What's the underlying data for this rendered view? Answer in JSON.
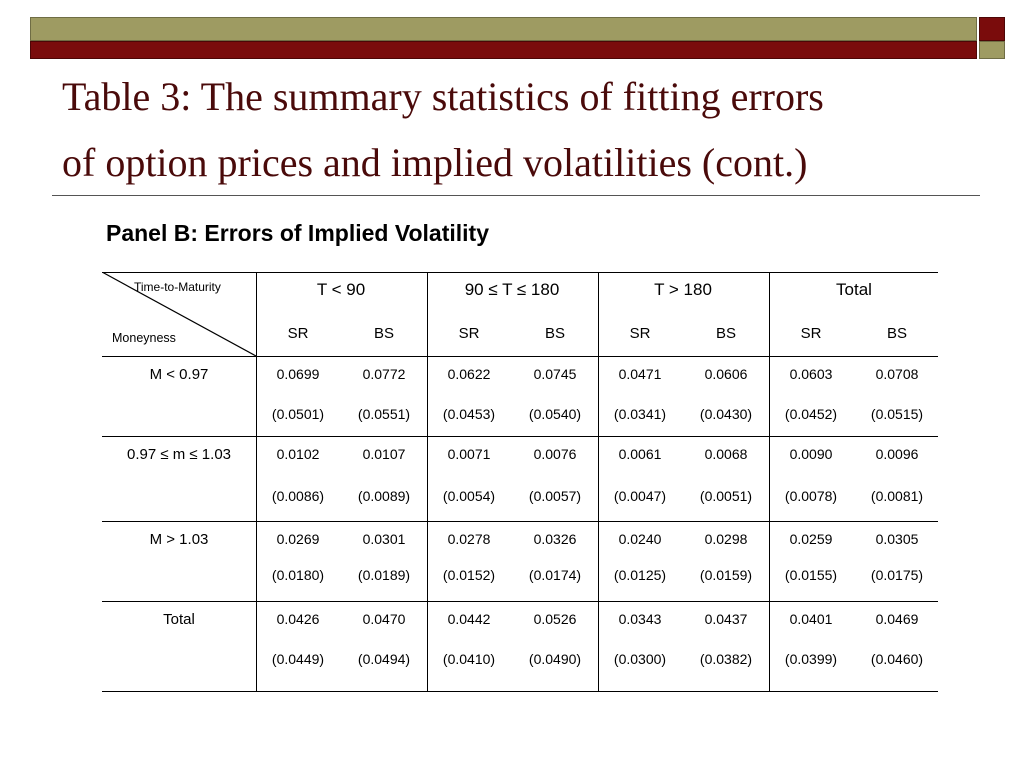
{
  "slide": {
    "title_line1": "Table 3: The summary statistics of fitting errors",
    "title_line2": "of option prices and implied volatilities (cont.)",
    "panel_title": "Panel B: Errors of Implied Volatility",
    "colors": {
      "title": "#4a0a0a",
      "maroon": "#7a0c0c",
      "olive": "#9e9b62"
    }
  },
  "table": {
    "corner_top": "Time-to-Maturity",
    "corner_bottom": "Moneyness",
    "groups": [
      "T < 90",
      "90 ≤ T ≤ 180",
      "T > 180",
      "Total"
    ],
    "subheaders": [
      "SR",
      "BS",
      "SR",
      "BS",
      "SR",
      "BS",
      "SR",
      "BS"
    ],
    "rows": [
      {
        "label": "M < 0.97",
        "values": [
          "0.0699",
          "0.0772",
          "0.0622",
          "0.0745",
          "0.0471",
          "0.0606",
          "0.0603",
          "0.0708"
        ],
        "sd": [
          "(0.0501)",
          "(0.0551)",
          "(0.0453)",
          "(0.0540)",
          "(0.0341)",
          "(0.0430)",
          "(0.0452)",
          "(0.0515)"
        ]
      },
      {
        "label": "0.97 ≤ m ≤ 1.03",
        "values": [
          "0.0102",
          "0.0107",
          "0.0071",
          "0.0076",
          "0.0061",
          "0.0068",
          "0.0090",
          "0.0096"
        ],
        "sd": [
          "(0.0086)",
          "(0.0089)",
          "(0.0054)",
          "(0.0057)",
          "(0.0047)",
          "(0.0051)",
          "(0.0078)",
          "(0.0081)"
        ]
      },
      {
        "label": "M > 1.03",
        "values": [
          "0.0269",
          "0.0301",
          "0.0278",
          "0.0326",
          "0.0240",
          "0.0298",
          "0.0259",
          "0.0305"
        ],
        "sd": [
          "(0.0180)",
          "(0.0189)",
          "(0.0152)",
          "(0.0174)",
          "(0.0125)",
          "(0.0159)",
          "(0.0155)",
          "(0.0175)"
        ]
      },
      {
        "label": "Total",
        "values": [
          "0.0426",
          "0.0470",
          "0.0442",
          "0.0526",
          "0.0343",
          "0.0437",
          "0.0401",
          "0.0469"
        ],
        "sd": [
          "(0.0449)",
          "(0.0494)",
          "(0.0410)",
          "(0.0490)",
          "(0.0300)",
          "(0.0382)",
          "(0.0399)",
          "(0.0460)"
        ]
      }
    ]
  }
}
